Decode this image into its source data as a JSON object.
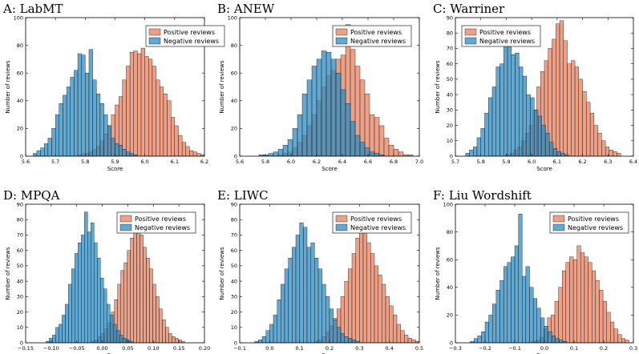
{
  "colors": {
    "positive": "#e8805f",
    "negative": "#2e8bc0",
    "axis": "#000000"
  },
  "legend": {
    "positive": "Positive reviews",
    "negative": "Negative reviews",
    "location": "upper-right"
  },
  "chart_data": [
    {
      "type": "bar",
      "title": "A: LabMT",
      "xlabel": "Score",
      "ylabel": "Number of reviews",
      "xlim": [
        5.6,
        6.2
      ],
      "ylim": [
        0,
        100
      ],
      "xticks": [
        "5.6",
        "5.7",
        "5.8",
        "5.9",
        "6.0",
        "6.1",
        "6.2"
      ],
      "yticks": [
        "0",
        "20",
        "40",
        "60",
        "80",
        "100"
      ],
      "series": [
        {
          "name": "Negative reviews",
          "bin_start": 5.625,
          "bin_width": 0.0125,
          "values": [
            2,
            4,
            6,
            9,
            13,
            20,
            30,
            38,
            44,
            50,
            57,
            62,
            74,
            73,
            60,
            77,
            55,
            45,
            38,
            30,
            22,
            13,
            9,
            8,
            5,
            3,
            2,
            1
          ]
        },
        {
          "name": "Positive reviews",
          "bin_start": 5.775,
          "bin_width": 0.0125,
          "values": [
            1,
            2,
            2,
            3,
            5,
            7,
            11,
            16,
            22,
            30,
            37,
            43,
            55,
            65,
            75,
            76,
            74,
            78,
            72,
            70,
            65,
            55,
            50,
            45,
            40,
            28,
            22,
            15,
            10,
            7,
            4,
            3,
            2,
            1,
            1
          ]
        }
      ]
    },
    {
      "type": "bar",
      "title": "B: ANEW",
      "xlabel": "Score",
      "ylabel": "Number of reviews",
      "xlim": [
        5.6,
        7.0
      ],
      "ylim": [
        0,
        100
      ],
      "xticks": [
        "5.6",
        "5.8",
        "6.0",
        "6.2",
        "6.4",
        "6.6",
        "6.8",
        "7.0"
      ],
      "yticks": [
        "0",
        "20",
        "40",
        "60",
        "80",
        "100"
      ],
      "series": [
        {
          "name": "Negative reviews",
          "bin_start": 5.75,
          "bin_width": 0.0375,
          "values": [
            1,
            1,
            2,
            3,
            5,
            8,
            12,
            20,
            30,
            45,
            55,
            65,
            70,
            76,
            75,
            70,
            60,
            48,
            38,
            25,
            15,
            10,
            6,
            3,
            2,
            1
          ]
        },
        {
          "name": "Positive reviews",
          "bin_start": 5.9,
          "bin_width": 0.0375,
          "values": [
            1,
            2,
            3,
            6,
            10,
            15,
            22,
            30,
            40,
            50,
            58,
            62,
            70,
            73,
            95,
            77,
            65,
            55,
            45,
            30,
            28,
            22,
            13,
            8,
            5,
            3,
            1,
            1
          ]
        }
      ]
    },
    {
      "type": "bar",
      "title": "C: Warriner",
      "xlabel": "Score",
      "ylabel": "Number of reviews",
      "xlim": [
        5.7,
        6.4
      ],
      "ylim": [
        0,
        90
      ],
      "xticks": [
        "5.7",
        "5.8",
        "5.9",
        "6.0",
        "6.1",
        "6.2",
        "6.3",
        "6.4"
      ],
      "yticks": [
        "0",
        "10",
        "20",
        "30",
        "40",
        "50",
        "60",
        "70",
        "80",
        "90"
      ],
      "series": [
        {
          "name": "Negative reviews",
          "bin_start": 5.74,
          "bin_width": 0.015,
          "values": [
            2,
            4,
            6,
            12,
            18,
            28,
            38,
            45,
            58,
            60,
            72,
            73,
            66,
            67,
            58,
            52,
            40,
            38,
            30,
            26,
            20,
            15,
            9,
            5,
            3,
            2,
            1
          ]
        },
        {
          "name": "Positive reviews",
          "bin_start": 5.9,
          "bin_width": 0.015,
          "values": [
            1,
            2,
            4,
            6,
            10,
            15,
            20,
            30,
            45,
            55,
            62,
            70,
            76,
            86,
            88,
            75,
            60,
            62,
            58,
            50,
            42,
            35,
            28,
            20,
            15,
            10,
            6,
            4,
            3,
            2
          ]
        }
      ]
    },
    {
      "type": "bar",
      "title": "D: MPQA",
      "xlabel": "Score",
      "ylabel": "Number of reviews",
      "xlim": [
        -0.15,
        0.2
      ],
      "ylim": [
        0,
        90
      ],
      "xticks": [
        "−0.15",
        "−0.10",
        "−0.05",
        "0.00",
        "0.05",
        "0.10",
        "0.15",
        "0.20"
      ],
      "yticks": [
        "0",
        "10",
        "20",
        "30",
        "40",
        "50",
        "60",
        "70",
        "80",
        "90"
      ],
      "series": [
        {
          "name": "Negative reviews",
          "bin_start": -0.11,
          "bin_width": 0.00625,
          "values": [
            1,
            3,
            5,
            10,
            12,
            18,
            25,
            38,
            48,
            58,
            65,
            70,
            85,
            72,
            78,
            65,
            55,
            42,
            35,
            25,
            18,
            12,
            8,
            5,
            3,
            2,
            1
          ]
        },
        {
          "name": "Positive reviews",
          "bin_start": -0.02,
          "bin_width": 0.00625,
          "values": [
            1,
            2,
            4,
            6,
            9,
            13,
            20,
            28,
            38,
            47,
            52,
            60,
            68,
            75,
            80,
            70,
            62,
            55,
            48,
            38,
            30,
            22,
            15,
            10,
            6,
            4,
            3,
            2,
            1
          ]
        }
      ]
    },
    {
      "type": "bar",
      "title": "E: LIWC",
      "xlabel": "Score",
      "ylabel": "Number of reviews",
      "xlim": [
        -0.1,
        0.5
      ],
      "ylim": [
        0,
        90
      ],
      "xticks": [
        "−0.1",
        "0.0",
        "0.1",
        "0.2",
        "0.3",
        "0.4",
        "0.5"
      ],
      "yticks": [
        "0",
        "10",
        "20",
        "30",
        "40",
        "50",
        "60",
        "70",
        "80",
        "90"
      ],
      "series": [
        {
          "name": "Negative reviews",
          "bin_start": -0.05,
          "bin_width": 0.0125,
          "values": [
            1,
            2,
            4,
            8,
            12,
            18,
            28,
            38,
            48,
            55,
            62,
            70,
            78,
            75,
            62,
            65,
            55,
            48,
            38,
            30,
            22,
            15,
            10,
            6,
            4,
            3,
            2,
            1
          ]
        },
        {
          "name": "Positive reviews",
          "bin_start": 0.15,
          "bin_width": 0.0125,
          "values": [
            1,
            2,
            4,
            7,
            11,
            16,
            22,
            30,
            40,
            48,
            58,
            68,
            80,
            72,
            65,
            58,
            50,
            44,
            38,
            30,
            24,
            18,
            12,
            8,
            5,
            3,
            2,
            1
          ]
        }
      ]
    },
    {
      "type": "bar",
      "title": "F: Liu Wordshift",
      "xlabel": "Score",
      "ylabel": "Number of reviews",
      "xlim": [
        -0.3,
        0.3
      ],
      "ylim": [
        0,
        100
      ],
      "xticks": [
        "−0.3",
        "−0.2",
        "−0.1",
        "0.0",
        "0.1",
        "0.2",
        "0.3"
      ],
      "yticks": [
        "0",
        "20",
        "40",
        "60",
        "80",
        "100"
      ],
      "series": [
        {
          "name": "Negative reviews",
          "bin_start": -0.25,
          "bin_width": 0.0125,
          "values": [
            1,
            3,
            5,
            8,
            15,
            20,
            28,
            38,
            45,
            55,
            58,
            62,
            70,
            93,
            48,
            55,
            40,
            32,
            25,
            18,
            12,
            8,
            5,
            3,
            2,
            1
          ]
        },
        {
          "name": "Positive reviews",
          "bin_start": -0.04,
          "bin_width": 0.0125,
          "values": [
            1,
            2,
            4,
            10,
            18,
            20,
            30,
            40,
            52,
            58,
            62,
            60,
            70,
            65,
            62,
            58,
            52,
            45,
            38,
            30,
            22,
            15,
            10,
            6,
            3,
            2
          ]
        }
      ]
    }
  ]
}
